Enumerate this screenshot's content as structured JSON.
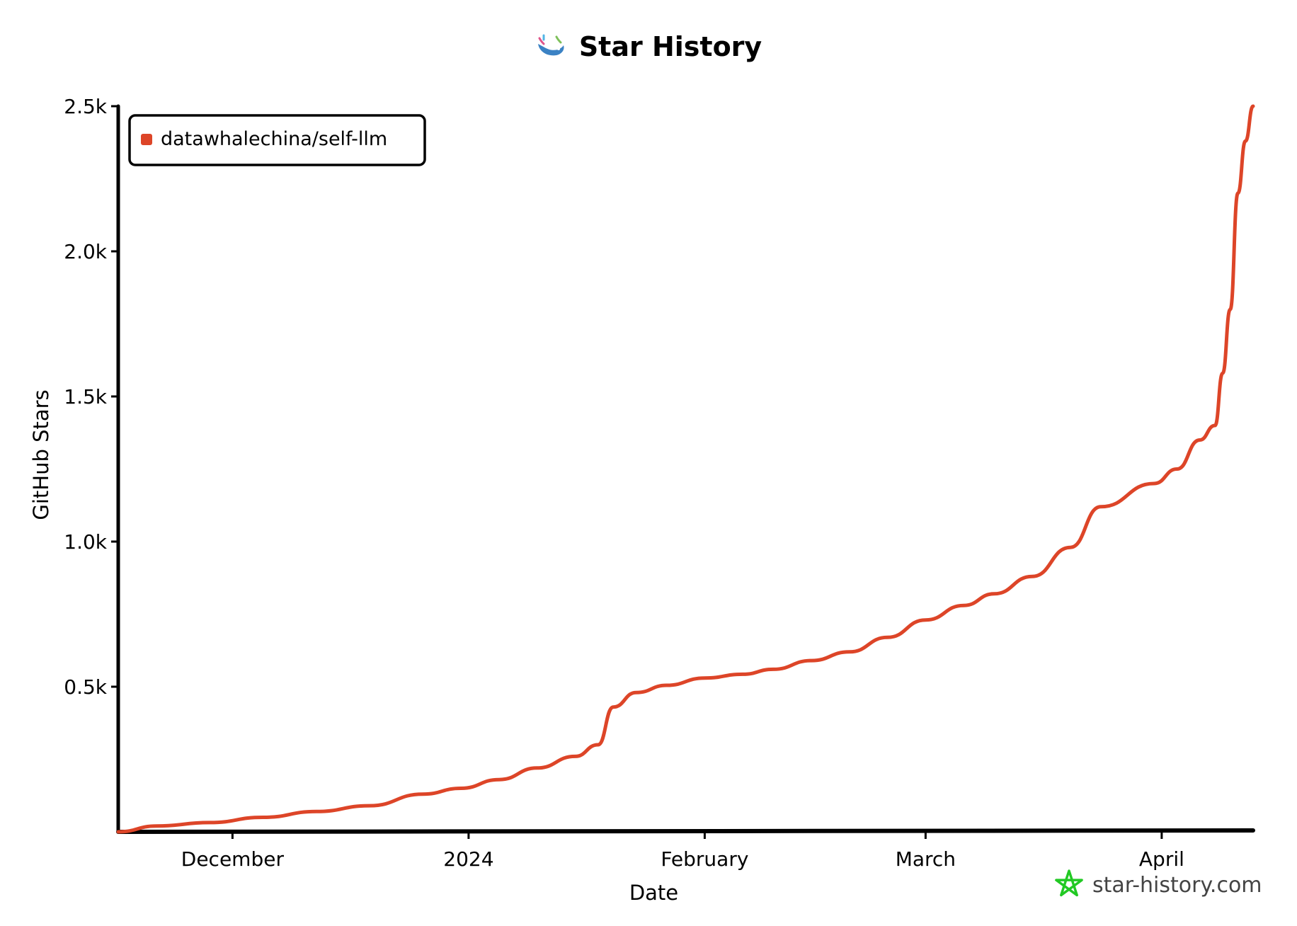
{
  "title": "Star History",
  "watermark": "star-history.com",
  "colors": {
    "series": "#dd4528",
    "axis": "#000000",
    "watermark_star": "#22c924",
    "whale": "#3b82c4"
  },
  "icons": {
    "title_icon": "whale-icon",
    "watermark_icon": "star-icon"
  },
  "chart_data": {
    "type": "line",
    "title": "Star History",
    "xlabel": "Date",
    "ylabel": "GitHub Stars",
    "x_range": [
      "2023-11-16",
      "2024-04-13"
    ],
    "ylim": [
      0,
      2500
    ],
    "y_ticks": [
      {
        "value": 500,
        "label": "0.5k"
      },
      {
        "value": 1000,
        "label": "1.0k"
      },
      {
        "value": 1500,
        "label": "1.5k"
      },
      {
        "value": 2000,
        "label": "2.0k"
      },
      {
        "value": 2500,
        "label": "2.5k"
      }
    ],
    "x_ticks": [
      {
        "date": "2023-12-01",
        "label": "December"
      },
      {
        "date": "2024-01-01",
        "label": "2024"
      },
      {
        "date": "2024-02-01",
        "label": "February"
      },
      {
        "date": "2024-03-01",
        "label": "March"
      },
      {
        "date": "2024-04-01",
        "label": "April"
      }
    ],
    "legend": {
      "position": "top-left"
    },
    "grid": false,
    "series": [
      {
        "name": "datawhalechina/self-llm",
        "color": "#dd4528",
        "points": [
          [
            "2023-11-16",
            0
          ],
          [
            "2023-11-21",
            20
          ],
          [
            "2023-11-28",
            32
          ],
          [
            "2023-12-05",
            50
          ],
          [
            "2023-12-12",
            70
          ],
          [
            "2023-12-19",
            90
          ],
          [
            "2023-12-26",
            130
          ],
          [
            "2023-12-31",
            150
          ],
          [
            "2024-01-05",
            180
          ],
          [
            "2024-01-10",
            220
          ],
          [
            "2024-01-15",
            260
          ],
          [
            "2024-01-18",
            300
          ],
          [
            "2024-01-20",
            430
          ],
          [
            "2024-01-23",
            480
          ],
          [
            "2024-01-27",
            505
          ],
          [
            "2024-02-01",
            530
          ],
          [
            "2024-02-06",
            543
          ],
          [
            "2024-02-10",
            560
          ],
          [
            "2024-02-15",
            590
          ],
          [
            "2024-02-20",
            620
          ],
          [
            "2024-02-25",
            670
          ],
          [
            "2024-03-01",
            730
          ],
          [
            "2024-03-06",
            780
          ],
          [
            "2024-03-10",
            820
          ],
          [
            "2024-03-15",
            880
          ],
          [
            "2024-03-20",
            980
          ],
          [
            "2024-03-24",
            1120
          ],
          [
            "2024-03-31",
            1200
          ],
          [
            "2024-04-03",
            1250
          ],
          [
            "2024-04-06",
            1350
          ],
          [
            "2024-04-08",
            1400
          ],
          [
            "2024-04-09",
            1580
          ],
          [
            "2024-04-10",
            1800
          ],
          [
            "2024-04-11",
            2200
          ],
          [
            "2024-04-12",
            2380
          ],
          [
            "2024-04-13",
            2500
          ]
        ]
      }
    ]
  }
}
